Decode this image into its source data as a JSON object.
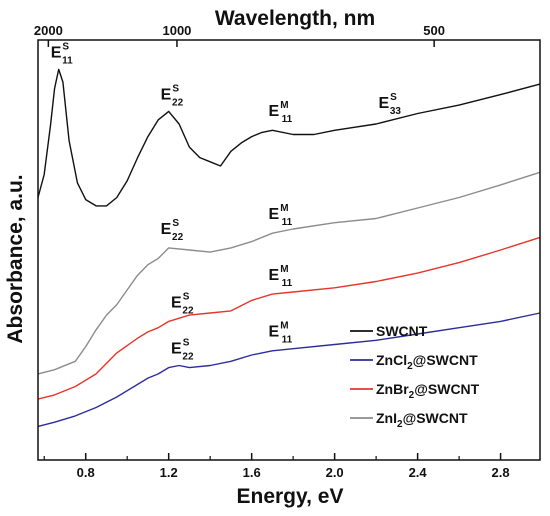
{
  "chart_data": {
    "type": "line",
    "xlabel": "Energy, eV",
    "ylabel": "Absorbance, a.u.",
    "x2label": "Wavelength, nm",
    "xlim": [
      0.57,
      2.99
    ],
    "ylim": [
      0,
      1
    ],
    "x_ticks": [
      0.8,
      1.2,
      1.6,
      2.0,
      2.4,
      2.8
    ],
    "x_tick_labels": [
      "0.8",
      "1.2",
      "1.6",
      "2.0",
      "2.4",
      "2.8"
    ],
    "x_minor_ticks": [
      0.6,
      1.0,
      1.4,
      1.8,
      2.2,
      2.6
    ],
    "top_ticks_nm": [
      2000,
      1000,
      500
    ],
    "top_tick_labels": [
      "2000",
      "1000",
      "500"
    ],
    "y_ticks_shown": false,
    "grid": false,
    "legend_position": "bottom-right",
    "series": [
      {
        "name": "SWCNT",
        "color": "#111111",
        "points": [
          [
            0.57,
            0.625
          ],
          [
            0.6,
            0.68
          ],
          [
            0.63,
            0.795
          ],
          [
            0.65,
            0.885
          ],
          [
            0.67,
            0.93
          ],
          [
            0.69,
            0.9
          ],
          [
            0.72,
            0.76
          ],
          [
            0.76,
            0.66
          ],
          [
            0.8,
            0.62
          ],
          [
            0.85,
            0.605
          ],
          [
            0.9,
            0.605
          ],
          [
            0.95,
            0.625
          ],
          [
            1.0,
            0.665
          ],
          [
            1.05,
            0.72
          ],
          [
            1.1,
            0.77
          ],
          [
            1.15,
            0.81
          ],
          [
            1.2,
            0.83
          ],
          [
            1.25,
            0.8
          ],
          [
            1.3,
            0.745
          ],
          [
            1.35,
            0.72
          ],
          [
            1.4,
            0.71
          ],
          [
            1.45,
            0.7
          ],
          [
            1.5,
            0.735
          ],
          [
            1.55,
            0.755
          ],
          [
            1.6,
            0.77
          ],
          [
            1.65,
            0.78
          ],
          [
            1.7,
            0.785
          ],
          [
            1.8,
            0.775
          ],
          [
            1.9,
            0.775
          ],
          [
            2.0,
            0.785
          ],
          [
            2.2,
            0.8
          ],
          [
            2.4,
            0.825
          ],
          [
            2.6,
            0.845
          ],
          [
            2.8,
            0.87
          ],
          [
            2.99,
            0.895
          ]
        ]
      },
      {
        "name": "ZnCl2@SWCNT",
        "color": "#2d2d9a",
        "points": [
          [
            0.57,
            0.08
          ],
          [
            0.65,
            0.09
          ],
          [
            0.75,
            0.105
          ],
          [
            0.85,
            0.125
          ],
          [
            0.95,
            0.15
          ],
          [
            1.05,
            0.18
          ],
          [
            1.1,
            0.195
          ],
          [
            1.15,
            0.205
          ],
          [
            1.2,
            0.22
          ],
          [
            1.25,
            0.225
          ],
          [
            1.3,
            0.22
          ],
          [
            1.4,
            0.225
          ],
          [
            1.5,
            0.235
          ],
          [
            1.6,
            0.25
          ],
          [
            1.7,
            0.26
          ],
          [
            1.8,
            0.265
          ],
          [
            2.0,
            0.275
          ],
          [
            2.2,
            0.285
          ],
          [
            2.4,
            0.3
          ],
          [
            2.6,
            0.315
          ],
          [
            2.8,
            0.33
          ],
          [
            2.99,
            0.35
          ]
        ]
      },
      {
        "name": "ZnBr2@SWCNT",
        "color": "#e8342a",
        "points": [
          [
            0.57,
            0.145
          ],
          [
            0.65,
            0.155
          ],
          [
            0.75,
            0.175
          ],
          [
            0.85,
            0.205
          ],
          [
            0.95,
            0.255
          ],
          [
            1.05,
            0.29
          ],
          [
            1.1,
            0.305
          ],
          [
            1.15,
            0.315
          ],
          [
            1.2,
            0.33
          ],
          [
            1.3,
            0.345
          ],
          [
            1.4,
            0.35
          ],
          [
            1.5,
            0.355
          ],
          [
            1.6,
            0.38
          ],
          [
            1.7,
            0.395
          ],
          [
            1.8,
            0.4
          ],
          [
            2.0,
            0.41
          ],
          [
            2.2,
            0.425
          ],
          [
            2.4,
            0.445
          ],
          [
            2.6,
            0.47
          ],
          [
            2.8,
            0.5
          ],
          [
            2.99,
            0.53
          ]
        ]
      },
      {
        "name": "ZnI2@SWCNT",
        "color": "#8c8c8c",
        "points": [
          [
            0.57,
            0.205
          ],
          [
            0.65,
            0.215
          ],
          [
            0.75,
            0.235
          ],
          [
            0.8,
            0.27
          ],
          [
            0.85,
            0.31
          ],
          [
            0.9,
            0.345
          ],
          [
            0.95,
            0.37
          ],
          [
            1.0,
            0.405
          ],
          [
            1.05,
            0.44
          ],
          [
            1.1,
            0.465
          ],
          [
            1.15,
            0.48
          ],
          [
            1.2,
            0.505
          ],
          [
            1.3,
            0.5
          ],
          [
            1.4,
            0.495
          ],
          [
            1.5,
            0.505
          ],
          [
            1.6,
            0.52
          ],
          [
            1.7,
            0.54
          ],
          [
            1.8,
            0.55
          ],
          [
            2.0,
            0.565
          ],
          [
            2.2,
            0.575
          ],
          [
            2.4,
            0.6
          ],
          [
            2.6,
            0.625
          ],
          [
            2.8,
            0.655
          ],
          [
            2.99,
            0.685
          ]
        ]
      }
    ],
    "annotations": [
      {
        "text": "E",
        "sup": "S",
        "sub": "11",
        "x": 0.67,
        "y": 0.93
      },
      {
        "text": "E",
        "sup": "S",
        "sub": "22",
        "x": 1.2,
        "y": 0.83
      },
      {
        "text": "E",
        "sup": "M",
        "sub": "11",
        "x": 1.72,
        "y": 0.79
      },
      {
        "text": "E",
        "sup": "S",
        "sub": "33",
        "x": 2.25,
        "y": 0.81
      },
      {
        "text": "E",
        "sup": "S",
        "sub": "22",
        "x": 1.2,
        "y": 0.51
      },
      {
        "text": "E",
        "sup": "M",
        "sub": "11",
        "x": 1.72,
        "y": 0.545
      },
      {
        "text": "E",
        "sup": "S",
        "sub": "22",
        "x": 1.25,
        "y": 0.335
      },
      {
        "text": "E",
        "sup": "M",
        "sub": "11",
        "x": 1.72,
        "y": 0.4
      },
      {
        "text": "E",
        "sup": "S",
        "sub": "22",
        "x": 1.25,
        "y": 0.225
      },
      {
        "text": "E",
        "sup": "M",
        "sub": "11",
        "x": 1.72,
        "y": 0.265
      }
    ],
    "legend": [
      {
        "base": "SWCNT",
        "sub": "",
        "rest": "",
        "color": "#111111"
      },
      {
        "base": "ZnCl",
        "sub": "2",
        "rest": "@SWCNT",
        "color": "#2d2d9a"
      },
      {
        "base": "ZnBr",
        "sub": "2",
        "rest": "@SWCNT",
        "color": "#e8342a"
      },
      {
        "base": "ZnI",
        "sub": "2",
        "rest": "@SWCNT",
        "color": "#8c8c8c"
      }
    ]
  }
}
